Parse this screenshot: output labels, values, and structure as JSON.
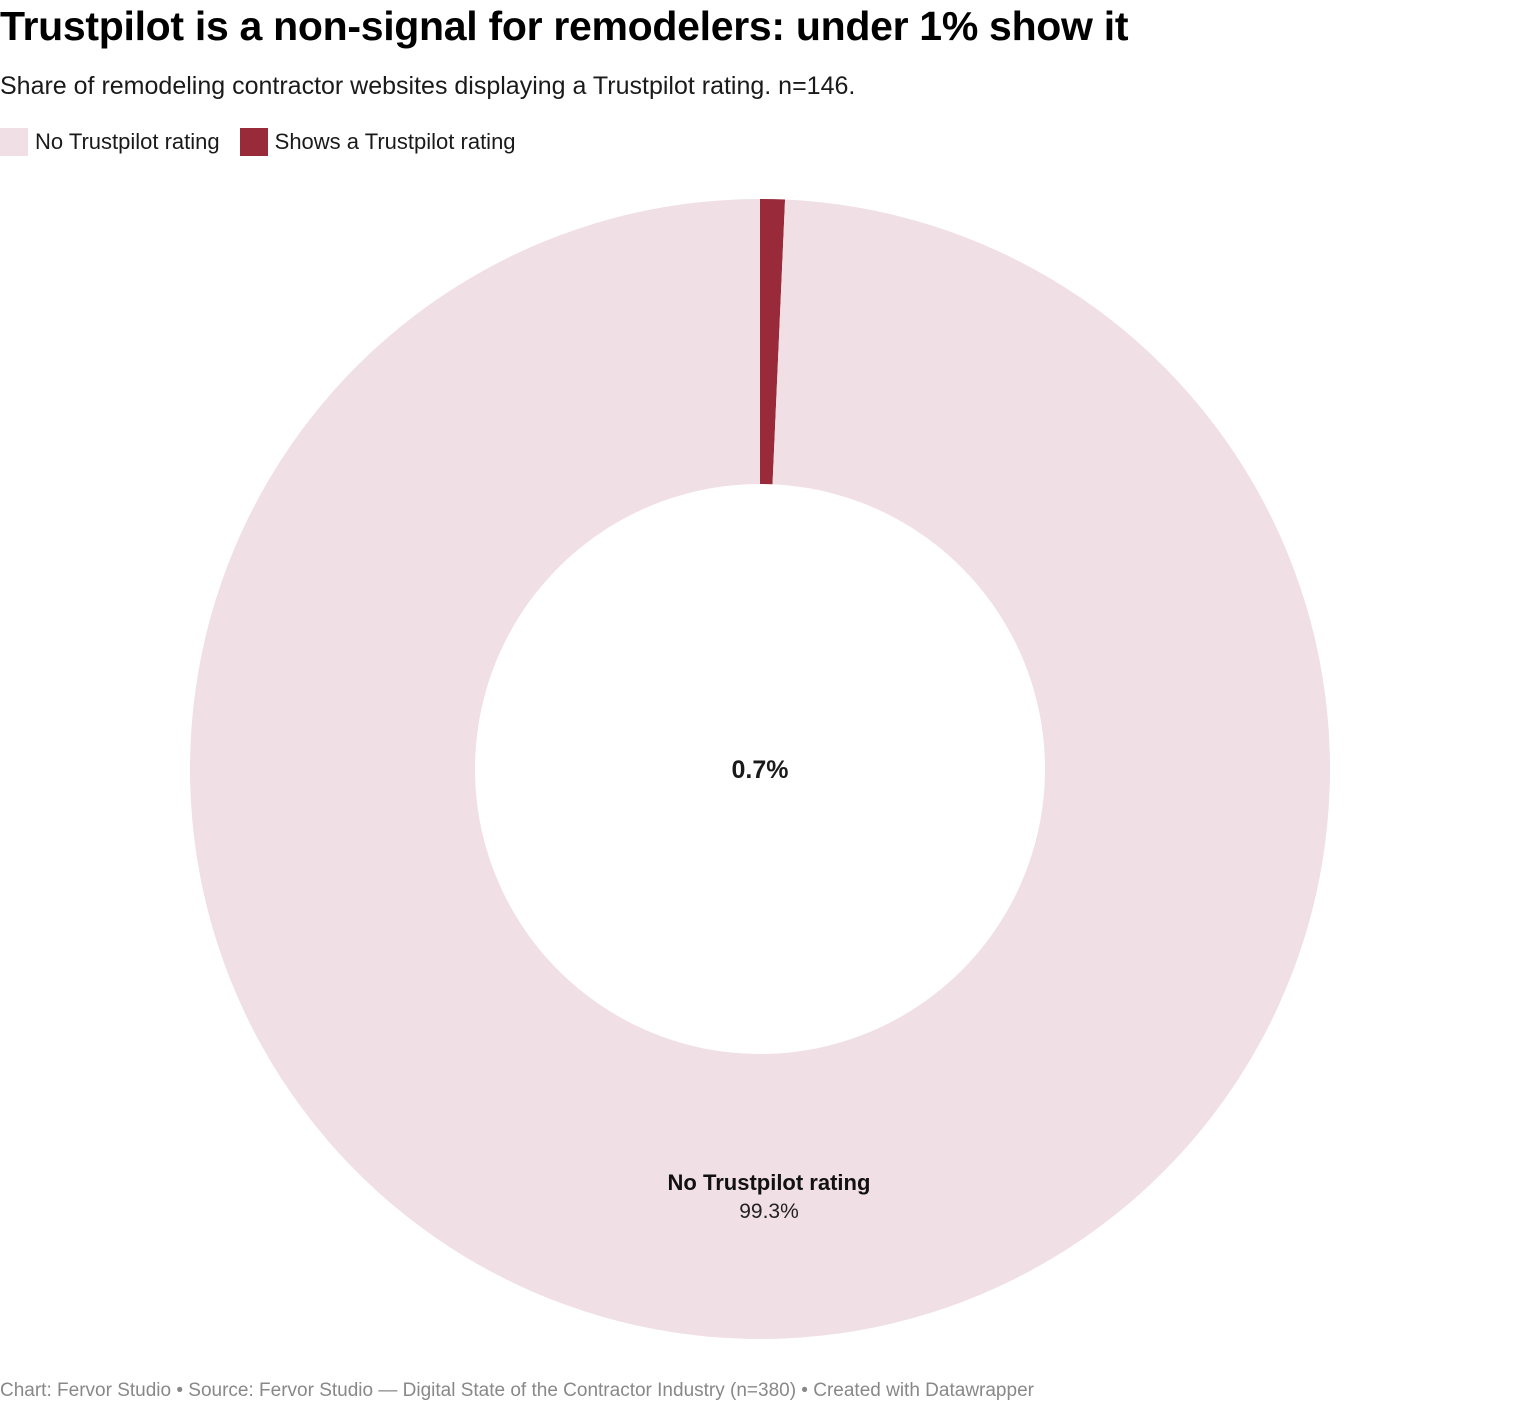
{
  "header": {
    "title": "Trustpilot is a non-signal for remodelers: under 1% show it",
    "subtitle": "Share of remodeling contractor websites displaying a Trustpilot rating. n=146."
  },
  "footer": {
    "text": "Chart: Fervor Studio • Source: Fervor Studio — Digital State of the Contractor Industry (n=380) • Created with Datawrapper"
  },
  "chart_data": {
    "type": "pie",
    "donut": true,
    "legend_position": "top-left",
    "series": [
      {
        "name": "Shows a Trustpilot rating",
        "value": 0.7,
        "value_label": "0.7%",
        "color": "#992a3a"
      },
      {
        "name": "No Trustpilot rating",
        "value": 99.3,
        "value_label": "99.3%",
        "color": "#f0dfe5"
      }
    ],
    "legend": [
      {
        "label": "No Trustpilot rating",
        "color": "#f0dfe5"
      },
      {
        "label": "Shows a Trustpilot rating",
        "color": "#992a3a"
      }
    ],
    "center_label": "0.7%",
    "slice_labels": [
      {
        "name": "No Trustpilot rating",
        "value": "99.3%"
      }
    ]
  }
}
